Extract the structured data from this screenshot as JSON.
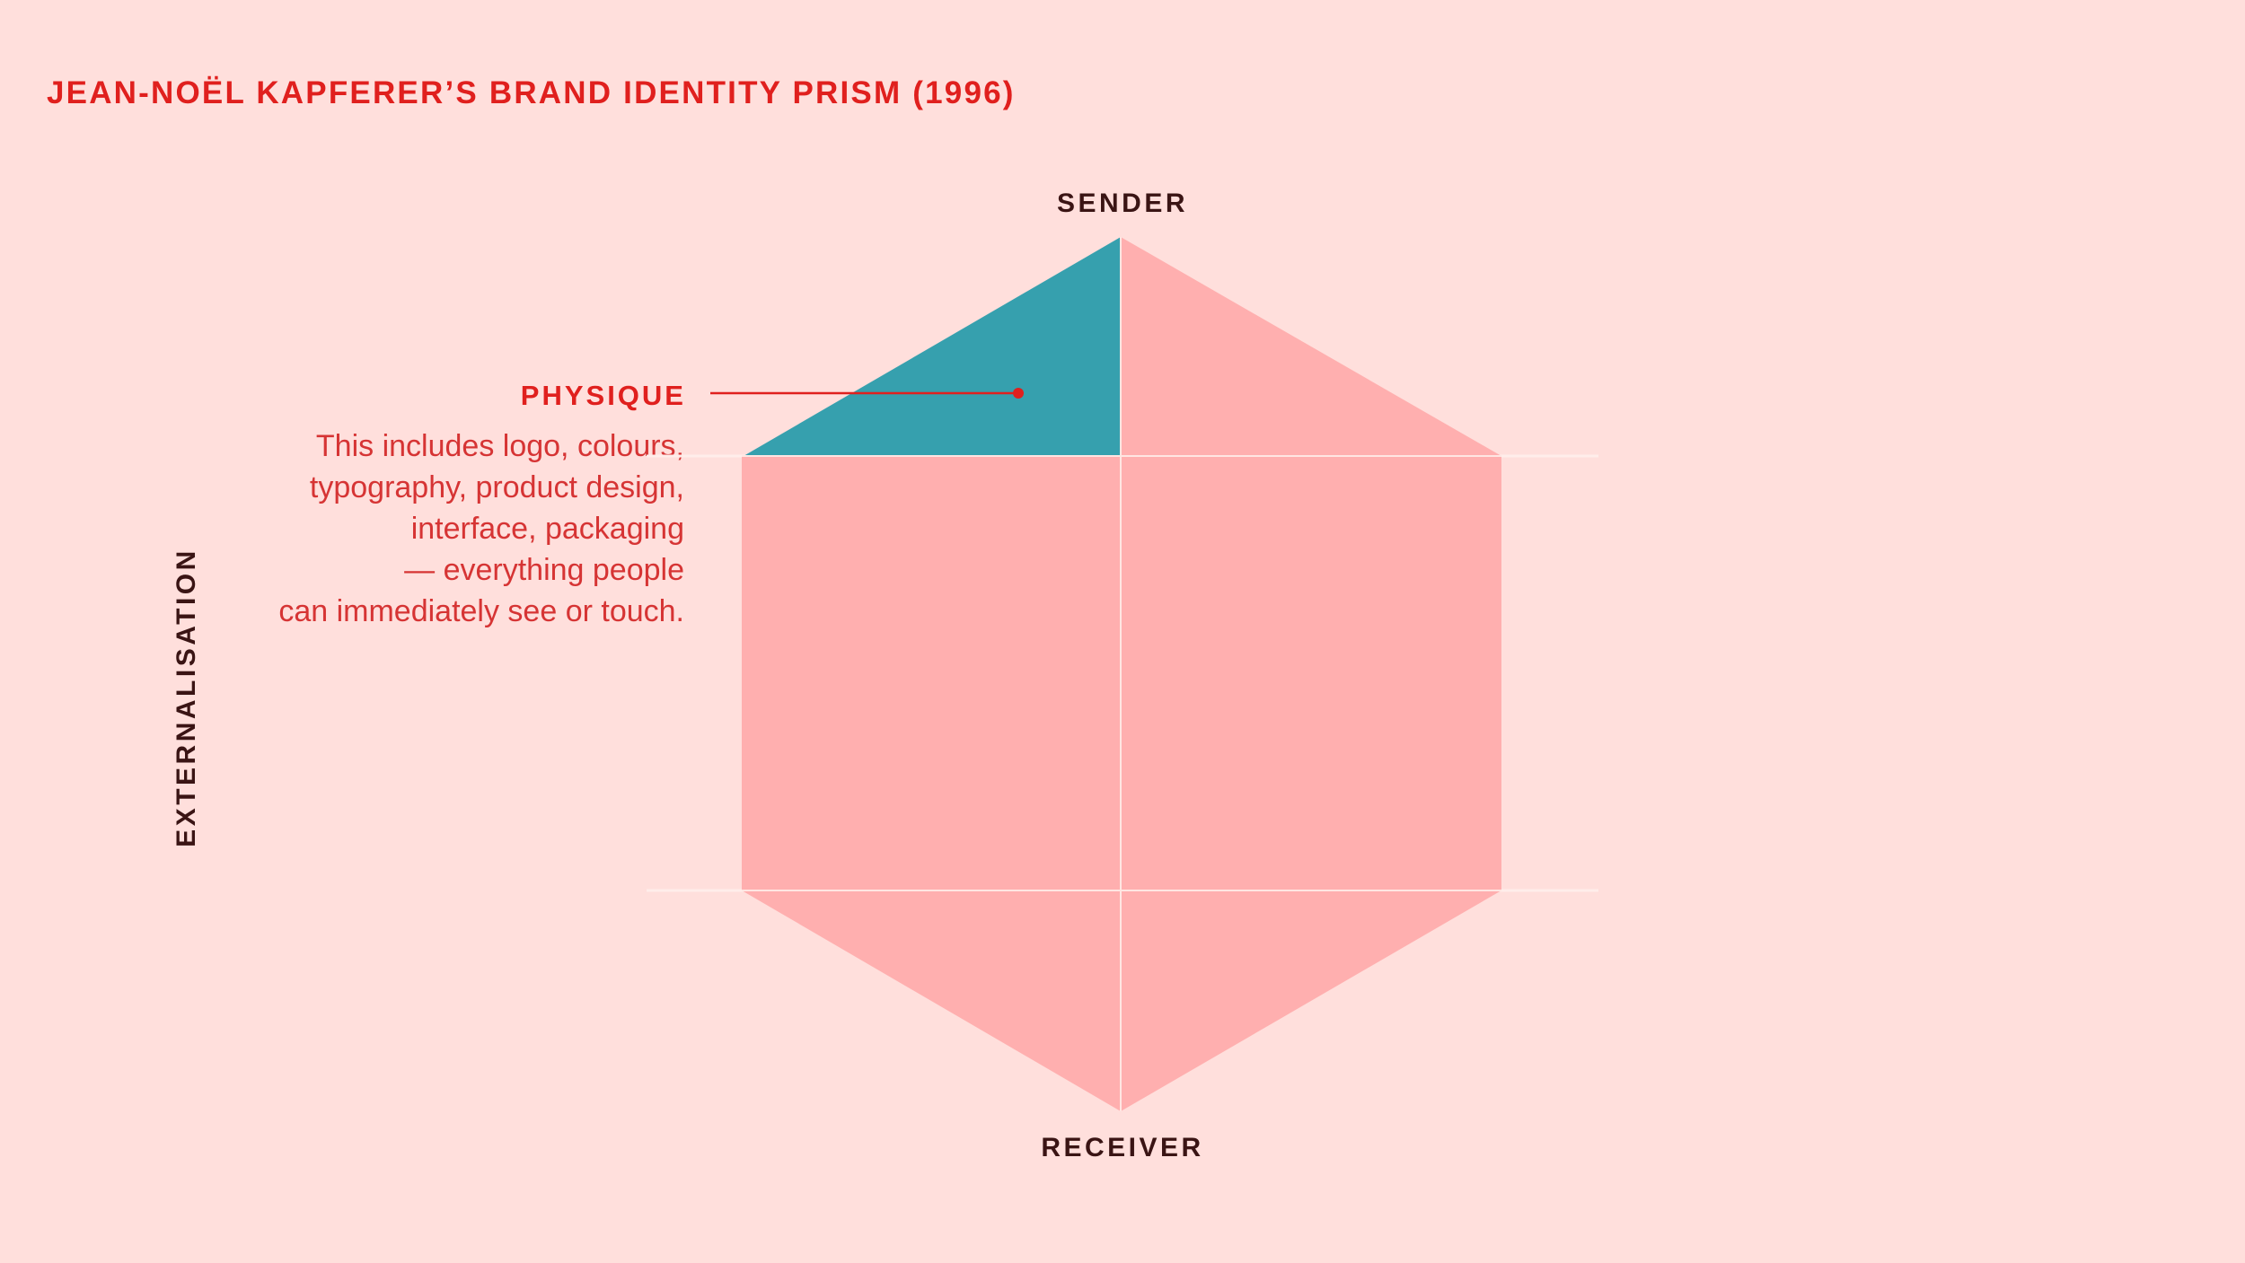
{
  "title": "JEAN-NOËL KAPFERER’S BRAND IDENTITY PRISM (1996)",
  "top_label": "SENDER",
  "bottom_label": "RECEIVER",
  "side_label": "EXTERNALISATION",
  "highlighted_facet": {
    "name": "PHYSIQUE",
    "description_lines": [
      "This includes logo, colours,",
      "typography, product design,",
      "interface, packaging",
      "— everything people",
      "can immediately see or touch."
    ]
  },
  "colors": {
    "background": "#FFDFDC",
    "facet": "#FFAFAF",
    "highlight": "#36A0AE",
    "accent": "#E0201E",
    "dark_text": "#3A1414"
  }
}
